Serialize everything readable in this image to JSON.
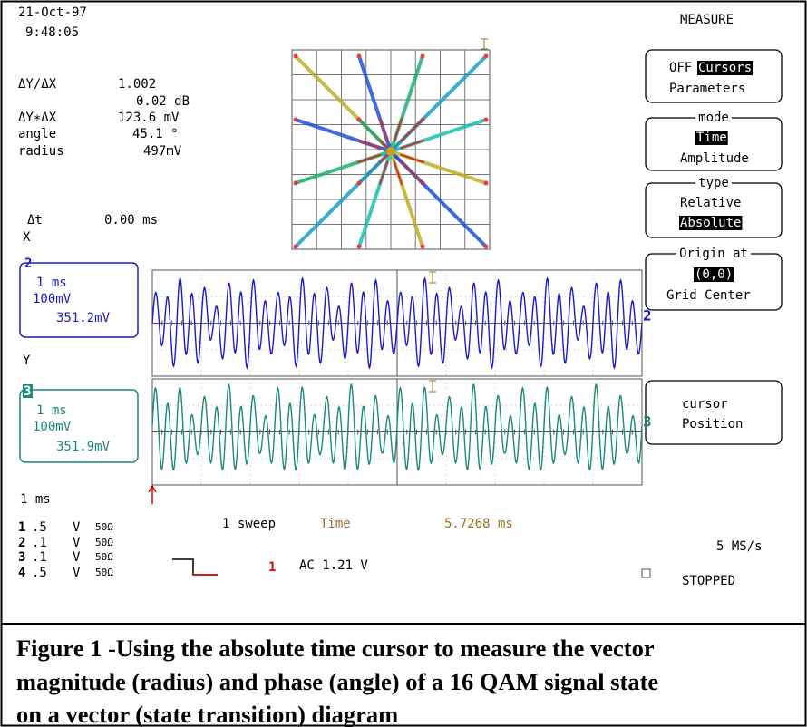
{
  "timestamp": {
    "date": "21-Oct-97",
    "time": "9:48:05"
  },
  "readouts": [
    [
      "ΔY/ΔX",
      "1.002"
    ],
    [
      "0.02 dB"
    ],
    [
      "ΔY∗ΔX",
      "123.6 mV"
    ],
    [
      "angle",
      "45.1 °"
    ],
    [
      "radius",
      "497mV"
    ]
  ],
  "delta_t": [
    "Δt",
    "0.00 ms"
  ],
  "x_label": "X",
  "y_label": "Y",
  "channels": [
    {
      "id": "2",
      "timebase": "1 ms",
      "scale": "100mV",
      "offset": "351.2mV"
    },
    {
      "id": "3",
      "timebase": "1 ms",
      "scale": "100mV",
      "offset": "351.9mV"
    }
  ],
  "timebase": "1 ms",
  "channel_list": [
    [
      "1",
      ".5",
      "V",
      "50Ω"
    ],
    [
      "2",
      ".1",
      "V",
      "50Ω"
    ],
    [
      "3",
      ".1",
      "V",
      "50Ω"
    ],
    [
      "4",
      ".5",
      "V",
      "50Ω"
    ]
  ],
  "acquisition": {
    "sweeps": "1 sweep",
    "cursor_label": "Time",
    "cursor_value": "5.7268 ms",
    "sample_rate": "5 MS/s",
    "status": "STOPPED"
  },
  "trigger": {
    "channel": "1",
    "level": "AC 1.21 V"
  },
  "trace_labels": [
    "2",
    "3"
  ],
  "menu": {
    "title": "MEASURE",
    "buttons": [
      {
        "lines": [
          "OFF",
          "Cursors",
          "Parameters"
        ]
      },
      {
        "header": "mode",
        "lines": [
          "Time",
          "Amplitude"
        ]
      },
      {
        "header": "type",
        "lines": [
          "Relative",
          "Absolute"
        ]
      },
      {
        "header": "Origin at",
        "lines": [
          "(0,0)",
          "Grid Center"
        ]
      },
      {
        "lines": [
          "cursor",
          "Position"
        ]
      }
    ]
  },
  "caption": [
    "Figure 1 -Using the absolute time cursor to measure the vector",
    "magnitude (radius) and phase (angle) of a 16 QAM signal state",
    "on a vector (state transition) diagram"
  ]
}
